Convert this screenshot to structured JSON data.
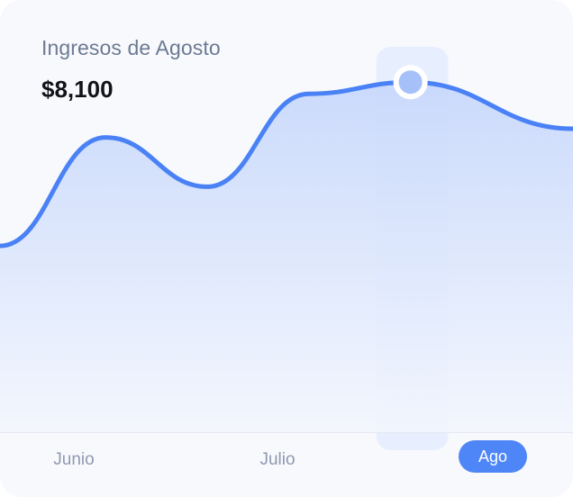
{
  "card": {
    "title": "Ingresos de Agosto",
    "value": "$8,100"
  },
  "colors": {
    "line": "#4a82f6",
    "area_top": "#c6d7fc",
    "area_bottom": "#f3f6fd",
    "highlight_band": "#e2ebfd",
    "marker_fill": "#a6c1fa",
    "marker_ring": "#ffffff",
    "active_tick_bg": "#4f86f7"
  },
  "chart_data": {
    "type": "area",
    "title": "Ingresos de Agosto",
    "xlabel": "",
    "ylabel": "",
    "categories": [
      "Junio",
      "Julio",
      "Ago"
    ],
    "highlighted_category": "Ago",
    "highlighted_value": 8100,
    "grid": false,
    "legend": "none",
    "ylim": [
      0,
      10000
    ],
    "series": [
      {
        "x": [
          4.98,
          5.5,
          6.0,
          6.5,
          7.0,
          7.8
        ],
        "values": [
          4310,
          6820,
          5680,
          7830,
          8100,
          7020
        ]
      }
    ]
  }
}
